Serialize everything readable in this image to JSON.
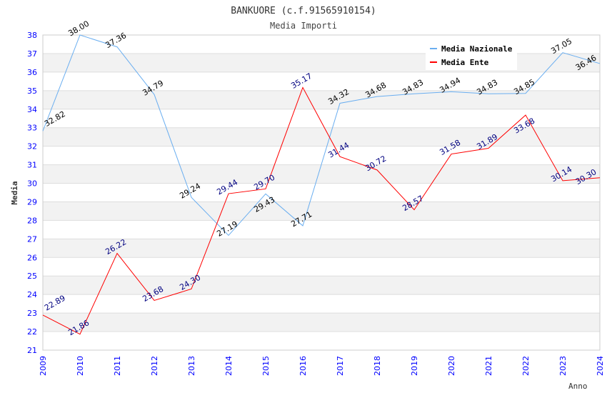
{
  "chart_data": {
    "type": "line",
    "title": "BANKUORE (c.f.91565910154)",
    "subtitle": "Media Importi",
    "xlabel": "Anno",
    "ylabel": "Media",
    "ylim": [
      21,
      38
    ],
    "yticks": [
      21,
      22,
      23,
      24,
      25,
      26,
      27,
      28,
      29,
      30,
      31,
      32,
      33,
      34,
      35,
      36,
      37,
      38
    ],
    "x": [
      "2009",
      "2010",
      "2011",
      "2012",
      "2013",
      "2014",
      "2015",
      "2016",
      "2017",
      "2018",
      "2019",
      "2020",
      "2021",
      "2022",
      "2023",
      "2024"
    ],
    "grid": true,
    "legend_position": "top-right",
    "series": [
      {
        "name": "Media Nazionale",
        "color": "#6aaef0",
        "label_color": "#000000",
        "values": [
          32.82,
          38.0,
          37.36,
          34.79,
          29.24,
          27.19,
          29.43,
          27.71,
          34.32,
          34.68,
          34.83,
          34.94,
          34.83,
          34.85,
          37.05,
          36.46
        ],
        "labels": [
          "32.82",
          "38.00",
          "37.36",
          "34.79",
          "29.24",
          "27.19",
          "29.43",
          "27.71",
          "34.32",
          "34.68",
          "34.83",
          "34.94",
          "34.83",
          "34.85",
          "37.05",
          "36.46"
        ]
      },
      {
        "name": "Media Ente",
        "color": "#ff0000",
        "label_color": "#000080",
        "values": [
          22.89,
          21.86,
          26.22,
          23.68,
          24.3,
          29.44,
          29.7,
          35.17,
          31.44,
          30.72,
          28.57,
          31.58,
          31.89,
          33.68,
          30.14,
          30.3
        ],
        "labels": [
          "22.89",
          "21.86",
          "26.22",
          "23.68",
          "24.30",
          "29.44",
          "29.70",
          "35.17",
          "31.44",
          "30.72",
          "28.57",
          "31.58",
          "31.89",
          "33.68",
          "30.14",
          "30.30"
        ]
      }
    ]
  }
}
